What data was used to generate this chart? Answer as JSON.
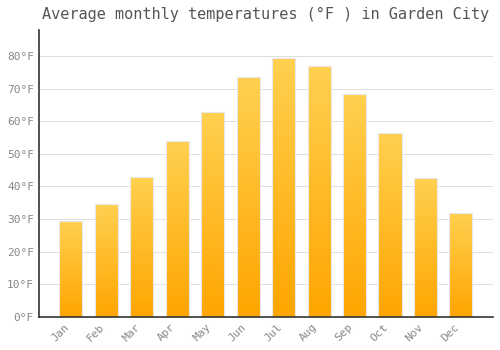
{
  "title": "Average monthly temperatures (°F ) in Garden City",
  "months": [
    "Jan",
    "Feb",
    "Mar",
    "Apr",
    "May",
    "Jun",
    "Jul",
    "Aug",
    "Sep",
    "Oct",
    "Nov",
    "Dec"
  ],
  "values": [
    29.5,
    34.5,
    43,
    54,
    63,
    73.5,
    79.5,
    77,
    68.5,
    56.5,
    42.5,
    32
  ],
  "bar_color_bottom": "#FFA500",
  "bar_color_top": "#FFD050",
  "bar_edge_color": "#E8E8E8",
  "background_color": "#FFFFFF",
  "grid_color": "#E0E0E0",
  "text_color": "#888888",
  "title_color": "#555555",
  "axis_color": "#333333",
  "ylim": [
    0,
    88
  ],
  "yticks": [
    0,
    10,
    20,
    30,
    40,
    50,
    60,
    70,
    80
  ],
  "ytick_labels": [
    "0°F",
    "10°F",
    "20°F",
    "30°F",
    "40°F",
    "50°F",
    "60°F",
    "70°F",
    "80°F"
  ],
  "title_fontsize": 11,
  "tick_fontsize": 8,
  "font_family": "monospace",
  "bar_width": 0.65
}
